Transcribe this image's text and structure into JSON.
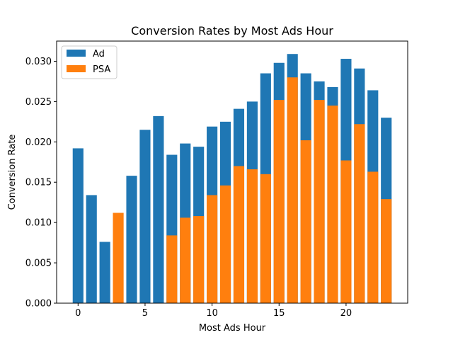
{
  "chart_data": {
    "type": "bar",
    "title": "Conversion Rates by Most Ads Hour",
    "xlabel": "Most Ads Hour",
    "ylabel": "Conversion Rate",
    "x": [
      0,
      1,
      2,
      3,
      4,
      5,
      6,
      7,
      8,
      9,
      10,
      11,
      12,
      13,
      14,
      15,
      16,
      17,
      18,
      19,
      20,
      21,
      22,
      23
    ],
    "xlim": [
      -1.6,
      24.6
    ],
    "ylim": [
      0,
      0.0325
    ],
    "xticks": [
      0,
      5,
      10,
      15,
      20
    ],
    "xtick_labels": [
      "0",
      "5",
      "10",
      "15",
      "20"
    ],
    "yticks": [
      0,
      0.005,
      0.01,
      0.015,
      0.02,
      0.025,
      0.03
    ],
    "ytick_labels": [
      "0.000",
      "0.005",
      "0.010",
      "0.015",
      "0.020",
      "0.025",
      "0.030"
    ],
    "bar_width": 0.8,
    "grid": false,
    "legend_position": "top-left",
    "series": [
      {
        "name": "Ad",
        "color": "#1f77b4",
        "values": [
          0.0192,
          0.0134,
          0.0076,
          0.0,
          0.0158,
          0.0215,
          0.0232,
          0.0184,
          0.0198,
          0.0194,
          0.0219,
          0.0225,
          0.0241,
          0.025,
          0.0285,
          0.0298,
          0.0309,
          0.0285,
          0.0275,
          0.0268,
          0.0303,
          0.0291,
          0.0264,
          0.023
        ]
      },
      {
        "name": "PSA",
        "color": "#ff7f0e",
        "values": [
          0.0,
          0.0,
          0.0,
          0.0112,
          0.0,
          0.0,
          0.0,
          0.0084,
          0.0106,
          0.0108,
          0.0134,
          0.0146,
          0.017,
          0.0166,
          0.016,
          0.0252,
          0.028,
          0.0202,
          0.0252,
          0.0245,
          0.0177,
          0.0222,
          0.0163,
          0.0129
        ]
      }
    ]
  }
}
